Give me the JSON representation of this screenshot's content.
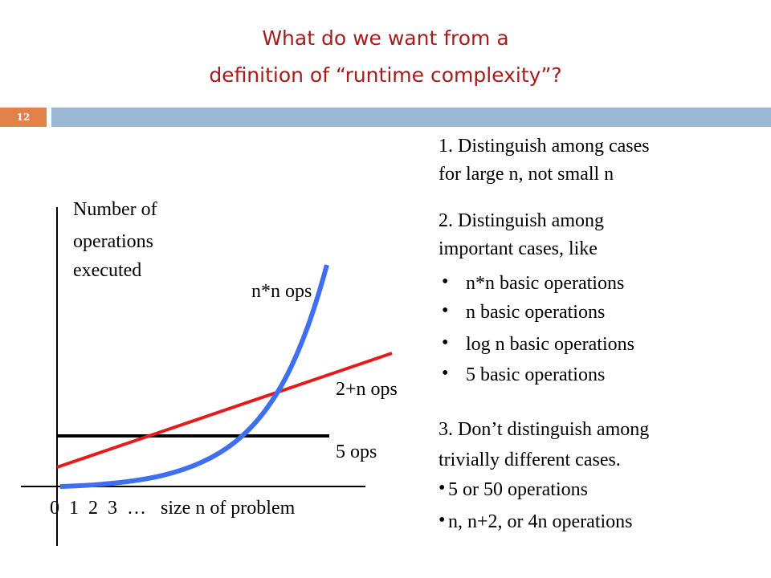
{
  "title": {
    "line1": "What do we want from a",
    "line2": "definition of “runtime complexity”?"
  },
  "slide_number": "12",
  "graph": {
    "y_label": [
      "Number of",
      "operations",
      "executed"
    ],
    "x_label": "0  1  2  3  …   size n of problem",
    "curves": [
      {
        "label": "n*n ops",
        "color": "#3d6ff0"
      },
      {
        "label": "2+n ops",
        "color": "#e41b1b"
      },
      {
        "label": "5 ops",
        "color": "#000000"
      }
    ]
  },
  "points": {
    "p1": [
      "1. Distinguish among cases",
      "for large n, not small n"
    ],
    "p2": [
      "2. Distinguish among",
      "important cases, like"
    ],
    "p2_bullets": [
      "n*n basic operations",
      "n basic operations",
      "log n basic operations",
      "5 basic operations"
    ],
    "p3": [
      "3. Don’t distinguish among",
      "trivially different cases."
    ],
    "p3_bullets": [
      "5 or 50 operations",
      "n, n+2, or 4n operations"
    ],
    "bullet_char": "•"
  }
}
